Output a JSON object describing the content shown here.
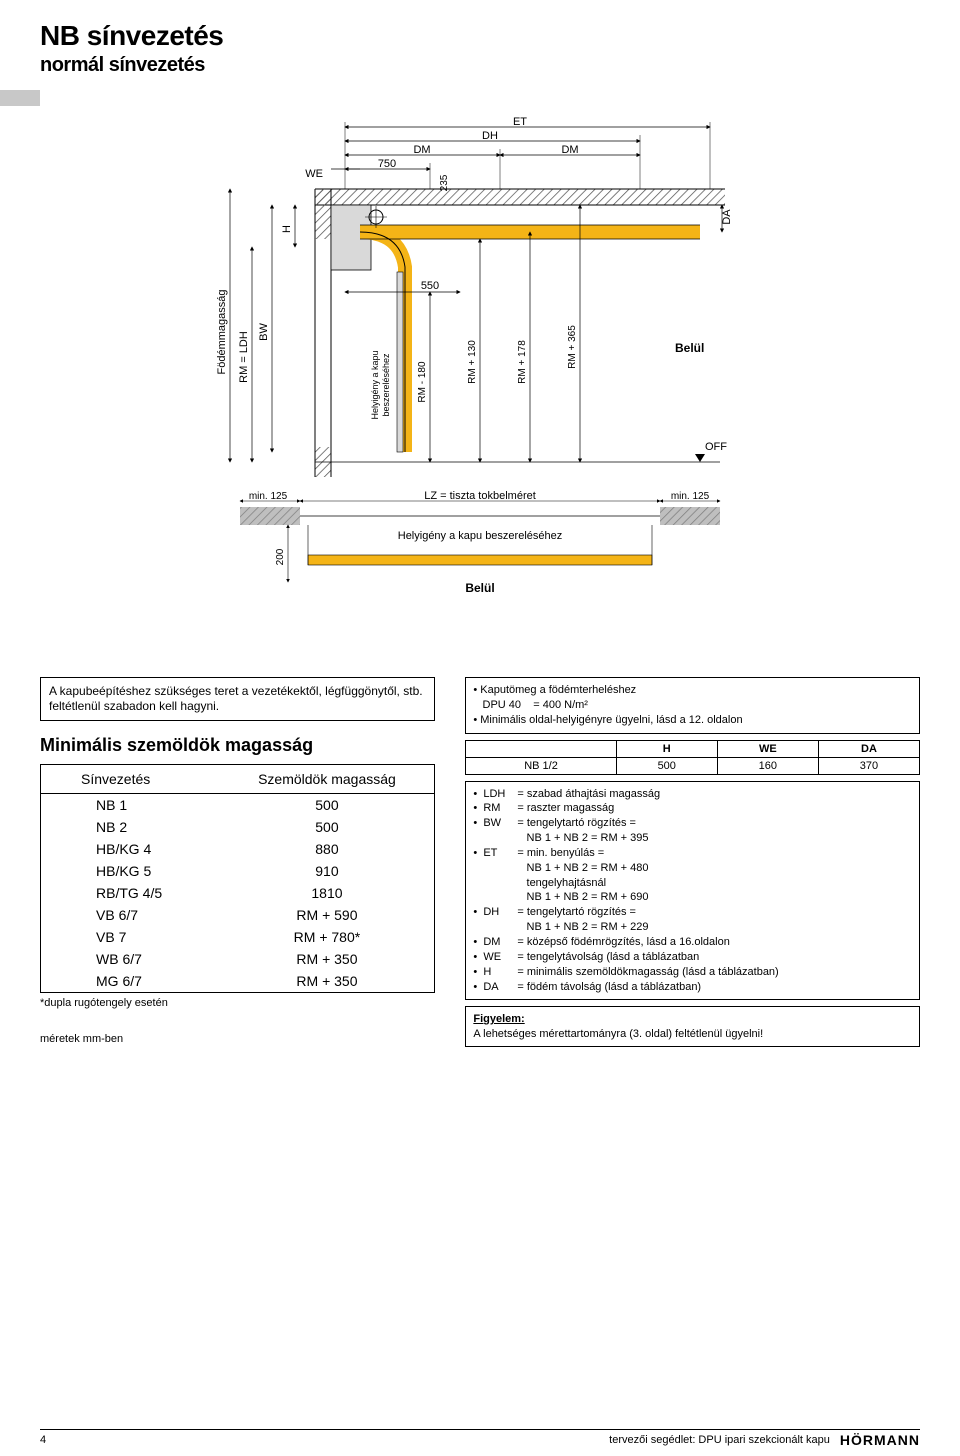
{
  "title": "NB sínvezetés",
  "subtitle": "normál sínvezetés",
  "diagram": {
    "labels": {
      "ET": "ET",
      "DH": "DH",
      "DM": "DM",
      "WE": "WE",
      "DA": "DA",
      "H": "H",
      "BW": "BW",
      "RM_LDH": "RM = LDH",
      "FM": "Födémmagasság",
      "helyigeny": "Helyigény a kapu\nbeszereléséhez",
      "RM180": "RM - 180",
      "RM130": "RM + 130",
      "RM178": "RM + 178",
      "RM365": "RM + 365",
      "belul": "Belül",
      "OFF": "OFF",
      "d750": "750",
      "d235": "235",
      "d550": "550",
      "min125": "min. 125",
      "LZ": "LZ = tiszta tokbelméret",
      "helyigeny2": "Helyigény a kapu beszereléséhez",
      "d200": "200"
    },
    "colors": {
      "track": "#f4b417",
      "section": "#d9d9d9",
      "wall": "#bfbfbf",
      "hatch": "#555555",
      "line": "#000000",
      "bg": "#ffffff"
    }
  },
  "note_box": "A kapubeépítéshez szükséges teret a vezetékektől, légfüggönytől, stb. feltétlenül szabadon kell hagyni.",
  "lintel_title": "Minimális szemöldök magasság",
  "lintel_headers": [
    "Sínvezetés",
    "Szemöldök magasság"
  ],
  "lintel_rows": [
    [
      "NB 1",
      "500"
    ],
    [
      "NB 2",
      "500"
    ],
    [
      "HB/KG 4",
      "880"
    ],
    [
      "HB/KG 5",
      "910"
    ],
    [
      "RB/TG 4/5",
      "1810"
    ],
    [
      "VB 6/7",
      "RM + 590"
    ],
    [
      "VB 7",
      "RM + 780*"
    ],
    [
      "WB 6/7",
      "RM + 350"
    ],
    [
      "MG 6/7",
      "RM + 350"
    ]
  ],
  "footnote": "*dupla rugótengely esetén",
  "units_note": "méretek mm-ben",
  "load_box": {
    "line1": "• Kaputömeg a födémterheléshez",
    "line2": "   DPU 40    = 400 N/m²",
    "line3": "• Minimális oldal-helyigényre ügyelni, lásd a 12. oldalon"
  },
  "hwd_headers": [
    "",
    "H",
    "WE",
    "DA"
  ],
  "hwd_row": [
    "NB 1/2",
    "500",
    "160",
    "370"
  ],
  "defs": [
    [
      "LDH",
      "= szabad áthajtási magasság"
    ],
    [
      "RM",
      "= raszter magasság"
    ],
    [
      "BW",
      "= tengelytartó rögzítés ="
    ],
    [
      "",
      "   NB 1 + NB 2 = RM + 395"
    ],
    [
      "ET",
      "= min. benyúlás ="
    ],
    [
      "",
      "   NB 1 + NB 2 = RM + 480"
    ],
    [
      "",
      "   tengelyhajtásnál"
    ],
    [
      "",
      "   NB 1 + NB 2 = RM + 690"
    ],
    [
      "DH",
      "= tengelytartó rögzítés ="
    ],
    [
      "",
      "   NB 1 + NB 2 = RM + 229"
    ],
    [
      "DM",
      "= középső födémrögzítés, lásd a 16.oldalon"
    ],
    [
      "WE",
      "= tengelytávolság (lásd a táblázatban"
    ],
    [
      "H",
      "= minimális szemöldökmagasság (lásd a táblázatban)"
    ],
    [
      "DA",
      "= födém távolság (lásd a táblázatban)"
    ]
  ],
  "attention_title": "Figyelem:",
  "attention_text": "A lehetséges mérettartományra (3. oldal) feltétlenül ügyelni!",
  "footer": {
    "page": "4",
    "center": "tervezői segédlet: DPU ipari szekcionált kapu",
    "brand": "HÖRMANN"
  }
}
